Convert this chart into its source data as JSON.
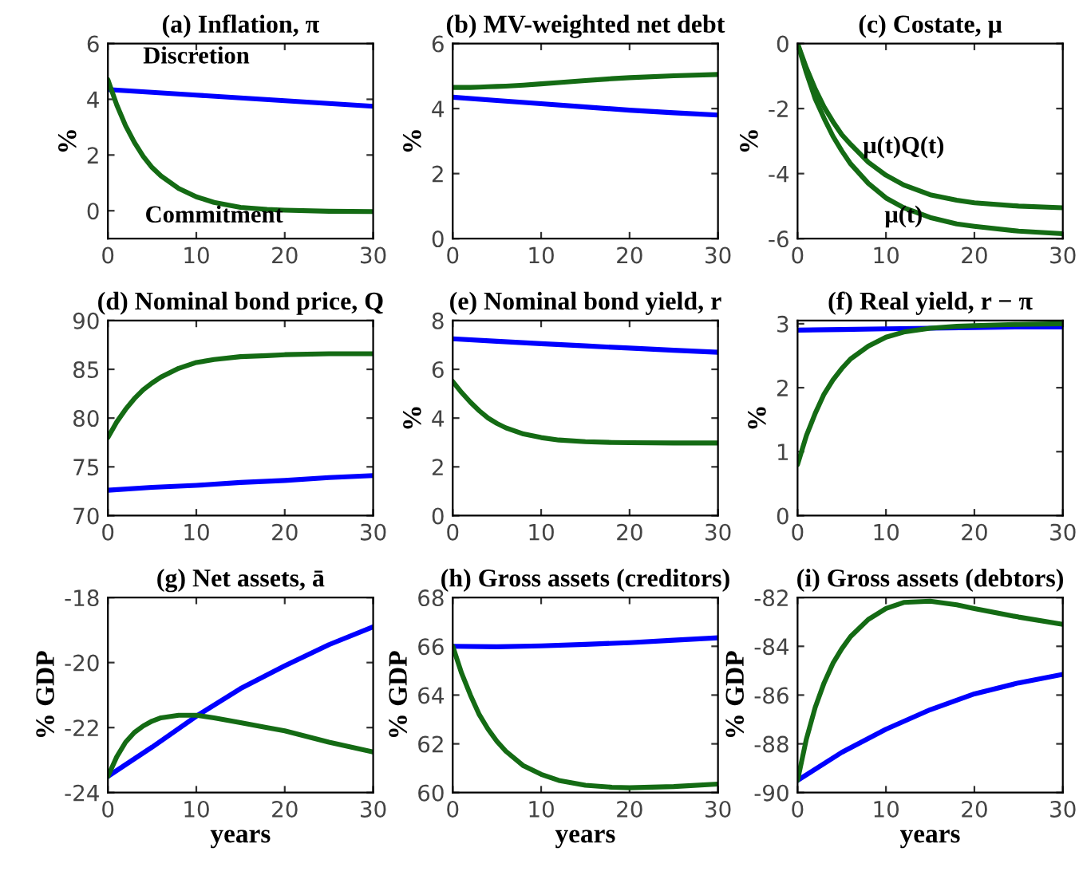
{
  "chart_data": [
    {
      "type": "line",
      "title": "(a) Inflation, π",
      "ylabel": "%",
      "xlim": [
        0,
        30
      ],
      "xticks": [
        0,
        10,
        20,
        30
      ],
      "ylim": [
        -1,
        6
      ],
      "yticks": [
        0,
        2,
        4,
        6
      ],
      "grid": false,
      "legend": false,
      "series": [
        {
          "name": "Discretion",
          "color": "#0000ff",
          "x": [
            0,
            5,
            10,
            15,
            20,
            25,
            30
          ],
          "values": [
            4.35,
            4.25,
            4.15,
            4.05,
            3.95,
            3.85,
            3.75
          ]
        },
        {
          "name": "Commitment",
          "color": "#146b14",
          "x": [
            0,
            1,
            2,
            3,
            4,
            5,
            6,
            8,
            10,
            12,
            15,
            18,
            20,
            25,
            30
          ],
          "values": [
            4.7,
            3.8,
            3.05,
            2.45,
            1.95,
            1.55,
            1.25,
            0.8,
            0.5,
            0.3,
            0.12,
            0.05,
            0.02,
            -0.02,
            -0.03
          ]
        }
      ]
    },
    {
      "type": "line",
      "title": "(b) MV-weighted net debt",
      "ylabel": "%",
      "xlim": [
        0,
        30
      ],
      "xticks": [
        0,
        10,
        20,
        30
      ],
      "ylim": [
        0,
        6
      ],
      "yticks": [
        0,
        2,
        4,
        6
      ],
      "grid": false,
      "legend": false,
      "series": [
        {
          "color": "#0000ff",
          "x": [
            0,
            5,
            10,
            15,
            20,
            25,
            30
          ],
          "values": [
            4.35,
            4.25,
            4.15,
            4.05,
            3.95,
            3.87,
            3.8
          ]
        },
        {
          "color": "#146b14",
          "x": [
            0,
            1,
            2,
            3,
            4,
            5,
            6,
            8,
            10,
            12,
            15,
            18,
            20,
            25,
            30
          ],
          "values": [
            4.65,
            4.65,
            4.65,
            4.66,
            4.67,
            4.68,
            4.69,
            4.72,
            4.76,
            4.8,
            4.86,
            4.92,
            4.95,
            5.01,
            5.05
          ]
        }
      ]
    },
    {
      "type": "line",
      "title": "(c) Costate, μ",
      "ylabel": "%",
      "xlim": [
        0,
        30
      ],
      "xticks": [
        0,
        10,
        20,
        30
      ],
      "ylim": [
        -6,
        0
      ],
      "yticks": [
        -6,
        -4,
        -2,
        0
      ],
      "grid": false,
      "legend": false,
      "series": [
        {
          "name": "μ(t)Q(t)",
          "color": "#146b14",
          "x": [
            0,
            1,
            2,
            3,
            4,
            5,
            6,
            8,
            10,
            12,
            15,
            18,
            20,
            25,
            30
          ],
          "values": [
            0,
            -0.75,
            -1.4,
            -1.95,
            -2.4,
            -2.8,
            -3.1,
            -3.65,
            -4.05,
            -4.35,
            -4.65,
            -4.82,
            -4.9,
            -5.0,
            -5.05
          ]
        },
        {
          "name": "μ(t)",
          "color": "#146b14",
          "x": [
            0,
            1,
            2,
            3,
            4,
            5,
            6,
            8,
            10,
            12,
            15,
            18,
            20,
            25,
            30
          ],
          "values": [
            0,
            -0.9,
            -1.7,
            -2.3,
            -2.85,
            -3.3,
            -3.7,
            -4.3,
            -4.75,
            -5.05,
            -5.35,
            -5.55,
            -5.62,
            -5.77,
            -5.85
          ]
        }
      ]
    },
    {
      "type": "line",
      "title": "(d) Nominal bond price, Q",
      "xlim": [
        0,
        30
      ],
      "xticks": [
        0,
        10,
        20,
        30
      ],
      "ylim": [
        70,
        90
      ],
      "yticks": [
        70,
        75,
        80,
        85,
        90
      ],
      "grid": false,
      "legend": false,
      "series": [
        {
          "color": "#0000ff",
          "x": [
            0,
            5,
            10,
            15,
            20,
            25,
            30
          ],
          "values": [
            72.6,
            72.9,
            73.1,
            73.4,
            73.6,
            73.9,
            74.1
          ]
        },
        {
          "color": "#146b14",
          "x": [
            0,
            1,
            2,
            3,
            4,
            5,
            6,
            8,
            10,
            12,
            15,
            18,
            20,
            25,
            30
          ],
          "values": [
            78,
            79.6,
            80.9,
            82,
            82.9,
            83.6,
            84.2,
            85.1,
            85.7,
            86.0,
            86.3,
            86.4,
            86.5,
            86.6,
            86.6
          ]
        }
      ]
    },
    {
      "type": "line",
      "title": "(e) Nominal bond yield, r",
      "ylabel": "%",
      "xlim": [
        0,
        30
      ],
      "xticks": [
        0,
        10,
        20,
        30
      ],
      "ylim": [
        0,
        8
      ],
      "yticks": [
        0,
        2,
        4,
        6,
        8
      ],
      "grid": false,
      "legend": false,
      "series": [
        {
          "color": "#0000ff",
          "x": [
            0,
            5,
            10,
            15,
            20,
            25,
            30
          ],
          "values": [
            7.25,
            7.15,
            7.05,
            6.96,
            6.87,
            6.78,
            6.7
          ]
        },
        {
          "color": "#146b14",
          "x": [
            0,
            1,
            2,
            3,
            4,
            5,
            6,
            8,
            10,
            12,
            15,
            18,
            20,
            25,
            30
          ],
          "values": [
            5.5,
            5.05,
            4.65,
            4.3,
            4.0,
            3.78,
            3.6,
            3.35,
            3.2,
            3.1,
            3.03,
            3.0,
            2.99,
            2.98,
            2.98
          ]
        }
      ]
    },
    {
      "type": "line",
      "title": "(f) Real yield, r − π",
      "ylabel": "%",
      "xlim": [
        0,
        30
      ],
      "xticks": [
        0,
        10,
        20,
        30
      ],
      "ylim": [
        0,
        3.05
      ],
      "yticks": [
        0,
        1,
        2,
        3
      ],
      "grid": false,
      "legend": false,
      "series": [
        {
          "color": "#0000ff",
          "x": [
            0,
            5,
            10,
            15,
            20,
            25,
            30
          ],
          "values": [
            2.9,
            2.91,
            2.92,
            2.93,
            2.94,
            2.95,
            2.95
          ]
        },
        {
          "color": "#146b14",
          "x": [
            0,
            1,
            2,
            3,
            4,
            5,
            6,
            8,
            10,
            12,
            15,
            18,
            20,
            25,
            30
          ],
          "values": [
            0.8,
            1.25,
            1.6,
            1.9,
            2.12,
            2.3,
            2.45,
            2.65,
            2.79,
            2.87,
            2.93,
            2.96,
            2.97,
            2.99,
            3.0
          ]
        }
      ]
    },
    {
      "type": "line",
      "title": "(g) Net assets, ā",
      "ylabel": "% GDP",
      "xlabel": "years",
      "xlim": [
        0,
        30
      ],
      "xticks": [
        0,
        10,
        20,
        30
      ],
      "ylim": [
        -24,
        -18
      ],
      "yticks": [
        -24,
        -22,
        -20,
        -18
      ],
      "grid": false,
      "legend": false,
      "series": [
        {
          "color": "#0000ff",
          "x": [
            0,
            5,
            10,
            15,
            20,
            25,
            30
          ],
          "values": [
            -23.5,
            -22.6,
            -21.65,
            -20.8,
            -20.1,
            -19.45,
            -18.9
          ]
        },
        {
          "color": "#146b14",
          "x": [
            0,
            1,
            2,
            3,
            4,
            5,
            6,
            8,
            10,
            12,
            15,
            18,
            20,
            25,
            30
          ],
          "values": [
            -23.5,
            -22.9,
            -22.45,
            -22.15,
            -21.95,
            -21.8,
            -21.7,
            -21.62,
            -21.62,
            -21.7,
            -21.85,
            -22.0,
            -22.1,
            -22.45,
            -22.75
          ]
        }
      ]
    },
    {
      "type": "line",
      "title": "(h) Gross assets (creditors)",
      "ylabel": "% GDP",
      "xlabel": "years",
      "xlim": [
        0,
        30
      ],
      "xticks": [
        0,
        10,
        20,
        30
      ],
      "ylim": [
        60,
        68
      ],
      "yticks": [
        60,
        62,
        64,
        66,
        68
      ],
      "grid": false,
      "legend": false,
      "series": [
        {
          "color": "#0000ff",
          "x": [
            0,
            5,
            10,
            15,
            20,
            25,
            30
          ],
          "values": [
            66.0,
            65.98,
            66.02,
            66.08,
            66.15,
            66.25,
            66.35
          ]
        },
        {
          "color": "#146b14",
          "x": [
            0,
            1,
            2,
            3,
            4,
            5,
            6,
            8,
            10,
            12,
            15,
            18,
            20,
            25,
            30
          ],
          "values": [
            66,
            64.9,
            64.0,
            63.2,
            62.6,
            62.1,
            61.7,
            61.1,
            60.75,
            60.5,
            60.3,
            60.22,
            60.2,
            60.25,
            60.35
          ]
        }
      ]
    },
    {
      "type": "line",
      "title": "(i) Gross assets (debtors)",
      "ylabel": "% GDP",
      "xlabel": "years",
      "xlim": [
        0,
        30
      ],
      "xticks": [
        0,
        10,
        20,
        30
      ],
      "ylim": [
        -90,
        -82
      ],
      "yticks": [
        -90,
        -88,
        -86,
        -84,
        -82
      ],
      "grid": false,
      "legend": false,
      "series": [
        {
          "color": "#0000ff",
          "x": [
            0,
            5,
            10,
            15,
            20,
            25,
            30
          ],
          "values": [
            -89.5,
            -88.35,
            -87.4,
            -86.6,
            -85.95,
            -85.5,
            -85.15
          ]
        },
        {
          "color": "#146b14",
          "x": [
            0,
            1,
            2,
            3,
            4,
            5,
            6,
            8,
            10,
            12,
            15,
            18,
            20,
            25,
            30
          ],
          "values": [
            -89.5,
            -87.8,
            -86.5,
            -85.5,
            -84.7,
            -84.1,
            -83.6,
            -82.9,
            -82.45,
            -82.2,
            -82.15,
            -82.3,
            -82.45,
            -82.8,
            -83.1
          ]
        }
      ]
    }
  ]
}
